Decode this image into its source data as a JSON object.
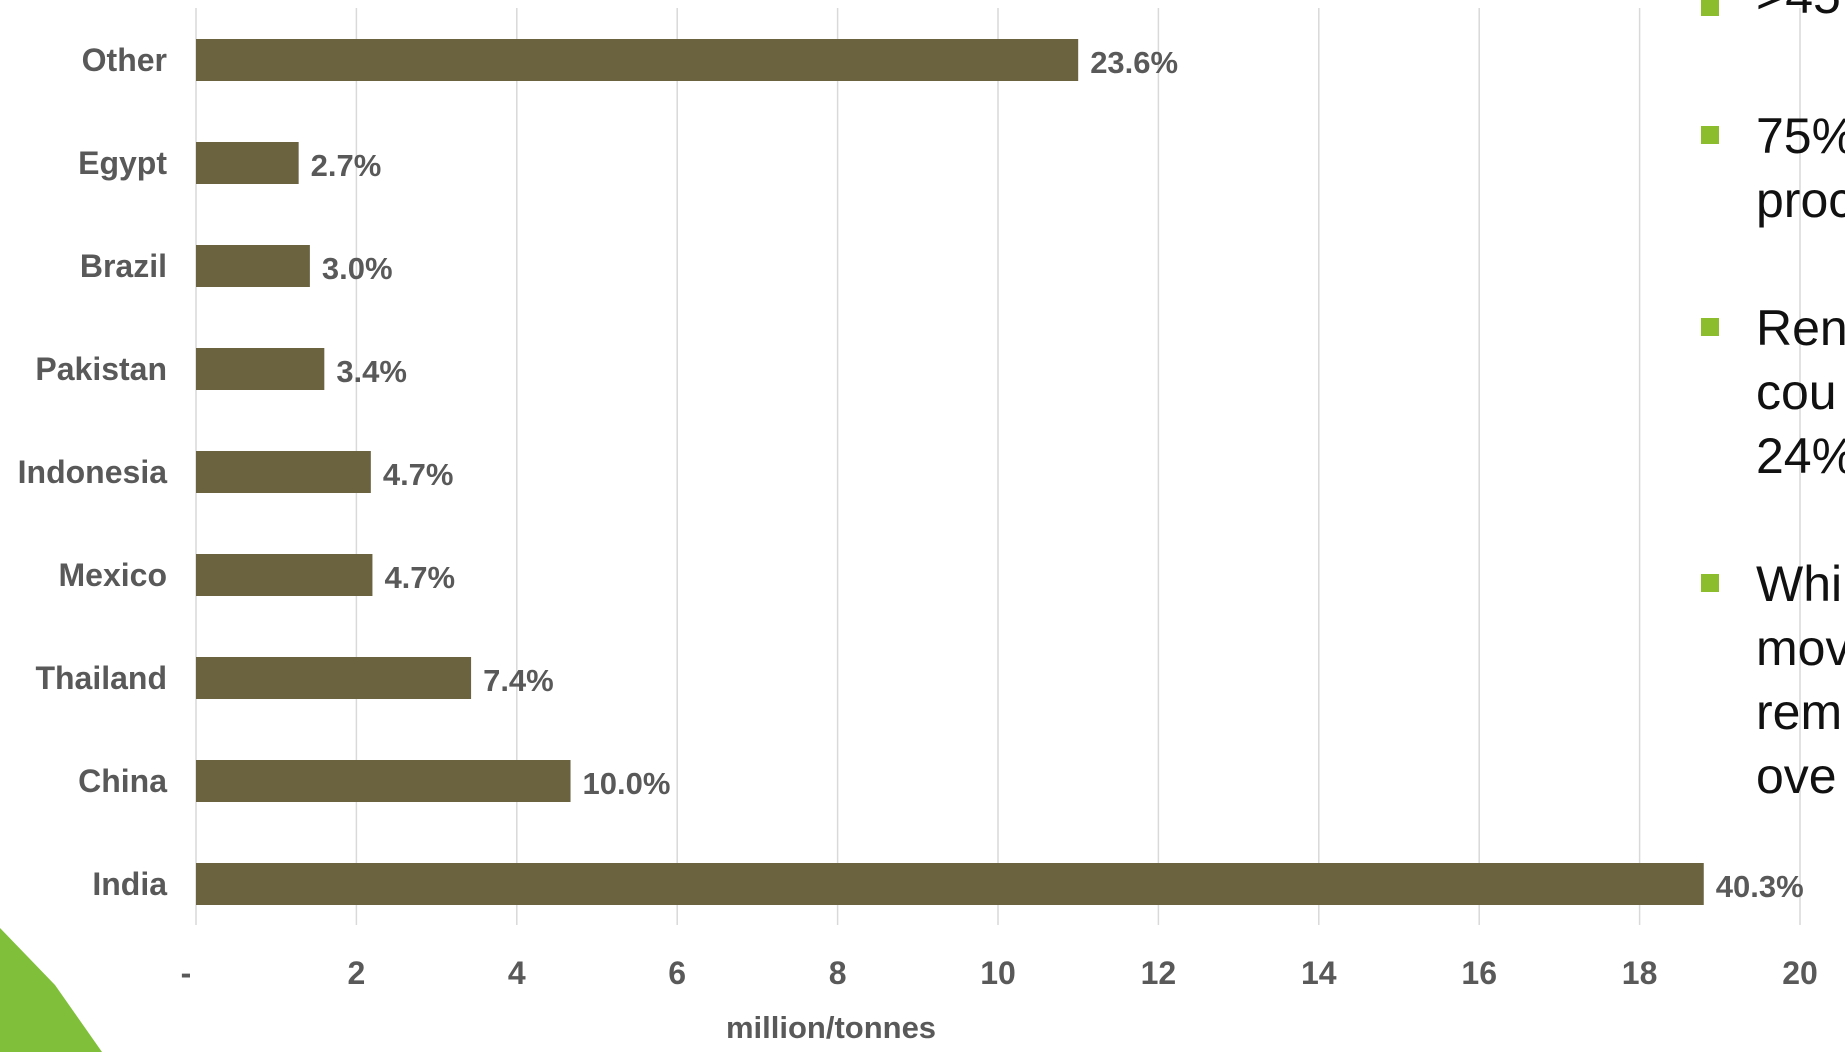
{
  "chart_data": {
    "type": "bar",
    "orientation": "horizontal",
    "categories": [
      "Other",
      "Egypt",
      "Brazil",
      "Pakistan",
      "Indonesia",
      "Mexico",
      "Thailand",
      "China",
      "India"
    ],
    "values": [
      11.0,
      1.28,
      1.42,
      1.6,
      2.18,
      2.2,
      3.43,
      4.67,
      18.8
    ],
    "data_labels": [
      "23.6%",
      "2.7%",
      "3.0%",
      "3.4%",
      "4.7%",
      "4.7%",
      "7.4%",
      "10.0%",
      "40.3%"
    ],
    "xlabel": "million/tonnes",
    "ylabel": "",
    "xlim": [
      0,
      20
    ],
    "x_ticks": [
      0,
      2,
      4,
      6,
      8,
      10,
      12,
      14,
      16,
      18,
      20
    ],
    "x_tick_labels": [
      "-",
      "2",
      "4",
      "6",
      "8",
      "10",
      "12",
      "14",
      "16",
      "18",
      "20"
    ],
    "grid": true,
    "bar_color": "#6b6340",
    "grid_color": "#d9d9d9",
    "text_color": "#595959"
  },
  "side_text": {
    "bullet_color": "#8cbd2c",
    "bullets": [
      {
        "text": ">45"
      },
      {
        "text": "75%\nproc"
      },
      {
        "text": "Ren\ncou\n24%"
      },
      {
        "text": "Whi\nmov\nrem\nove"
      }
    ]
  },
  "decor": {
    "corner_color": "#7fbf3a"
  }
}
